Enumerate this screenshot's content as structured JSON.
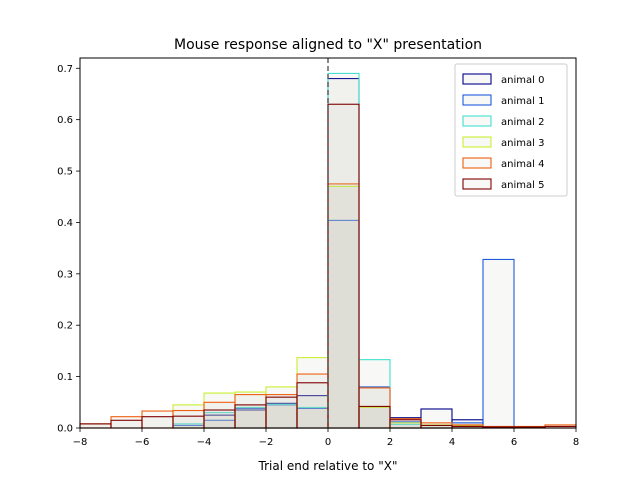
{
  "chart_data": {
    "type": "histogram",
    "title": "Mouse response aligned to \"X\" presentation",
    "xlabel": "Trial end relative to \"X\"",
    "ylabel": "",
    "xlim": [
      -8,
      8
    ],
    "ylim": [
      0,
      0.72
    ],
    "xticks": [
      -8,
      -6,
      -4,
      -2,
      0,
      2,
      4,
      6,
      8
    ],
    "yticks": [
      0.0,
      0.1,
      0.2,
      0.3,
      0.4,
      0.5,
      0.6,
      0.7
    ],
    "xtick_labels": [
      "−8",
      "−6",
      "−4",
      "−2",
      "0",
      "2",
      "4",
      "6",
      "8"
    ],
    "ytick_labels": [
      "0.0",
      "0.1",
      "0.2",
      "0.3",
      "0.4",
      "0.5",
      "0.6",
      "0.7"
    ],
    "vline": {
      "x": 0,
      "style": "dashed",
      "color": "#555555"
    },
    "legend_position": "top-right",
    "bin_edges": [
      -8,
      -7,
      -6,
      -5,
      -4,
      -3,
      -2,
      -1,
      0,
      1,
      2,
      3,
      4,
      5,
      6,
      7,
      8
    ],
    "series": [
      {
        "name": "animal 0",
        "color": "#00008b",
        "values": [
          0,
          0,
          0,
          0,
          0.025,
          0.035,
          0.048,
          0.063,
          0.68,
          0.04,
          0.02,
          0.037,
          0.016,
          0,
          0,
          0
        ]
      },
      {
        "name": "animal 1",
        "color": "#1e5bdc",
        "values": [
          0,
          0,
          0,
          0.005,
          0.015,
          0.038,
          0.045,
          0.038,
          0.404,
          0.08,
          0.012,
          0.005,
          0.01,
          0.328,
          0,
          0
        ]
      },
      {
        "name": "animal 2",
        "color": "#40e0d0",
        "values": [
          0,
          0,
          0,
          0.008,
          0.03,
          0.04,
          0.046,
          0.04,
          0.69,
          0.133,
          0.007,
          0.005,
          0.005,
          0,
          0,
          0
        ]
      },
      {
        "name": "animal 3",
        "color": "#c8f032",
        "values": [
          0,
          0,
          0,
          0.045,
          0.068,
          0.07,
          0.08,
          0.137,
          0.47,
          0.04,
          0.01,
          0.006,
          0.005,
          0,
          0,
          0
        ]
      },
      {
        "name": "animal 4",
        "color": "#ee6010",
        "values": [
          0.008,
          0.022,
          0.033,
          0.034,
          0.05,
          0.065,
          0.065,
          0.105,
          0.475,
          0.078,
          0.018,
          0.01,
          0.006,
          0.003,
          0.003,
          0.006
        ]
      },
      {
        "name": "animal 5",
        "color": "#7f0000",
        "values": [
          0.008,
          0.015,
          0.022,
          0.023,
          0.035,
          0.045,
          0.06,
          0.088,
          0.63,
          0.042,
          0.016,
          0.005,
          0.003,
          0.002,
          0.002,
          0.003
        ]
      }
    ]
  }
}
